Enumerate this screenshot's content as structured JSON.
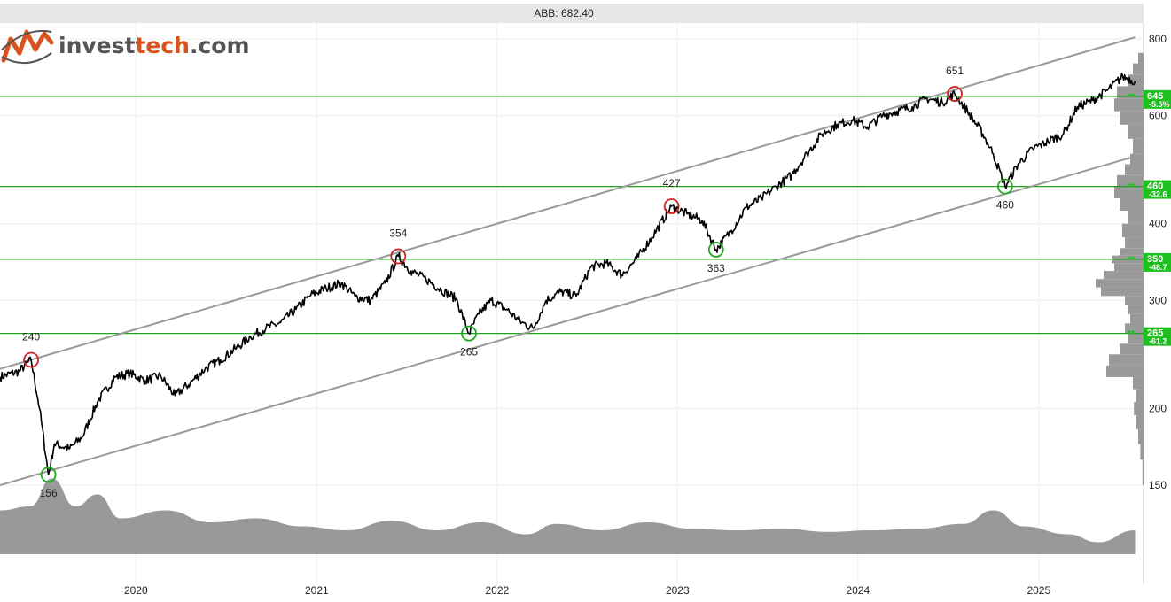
{
  "header": {
    "title": "ABB: 682.40"
  },
  "logo": {
    "part1": "invest",
    "part2": "tech",
    "part3": ".com",
    "icon": "investtech-logo-icon"
  },
  "colors": {
    "price_line": "#000000",
    "trend_channel": "#999999",
    "support_line": "#1fa31f",
    "badge": "#1fbf1f",
    "volume": "#999999",
    "high_circle": "#cc2222",
    "low_circle": "#22aa22",
    "header_bg": "#e6e6e6",
    "grid": "#eeeeee"
  },
  "chart_data": {
    "type": "line",
    "title": "ABB: 682.40",
    "last_price": 682.4,
    "scale": "log",
    "x_range": [
      "2019-04-01",
      "2025-08-01"
    ],
    "y_range": [
      150,
      800
    ],
    "y_ticks": [
      150,
      200,
      300,
      400,
      600,
      800
    ],
    "x_ticks": [
      "2020",
      "2021",
      "2022",
      "2023",
      "2024",
      "2025"
    ],
    "grid": true,
    "price_series": [
      [
        "2019-04-01",
        225
      ],
      [
        "2019-05-10",
        230
      ],
      [
        "2019-06-03",
        240
      ],
      [
        "2019-06-20",
        200
      ],
      [
        "2019-07-08",
        156
      ],
      [
        "2019-07-20",
        175
      ],
      [
        "2019-08-20",
        172
      ],
      [
        "2019-09-15",
        180
      ],
      [
        "2019-10-15",
        205
      ],
      [
        "2019-11-20",
        225
      ],
      [
        "2019-12-20",
        228
      ],
      [
        "2020-01-20",
        222
      ],
      [
        "2020-02-20",
        226
      ],
      [
        "2020-03-20",
        210
      ],
      [
        "2020-04-20",
        220
      ],
      [
        "2020-05-20",
        232
      ],
      [
        "2020-06-20",
        240
      ],
      [
        "2020-07-20",
        250
      ],
      [
        "2020-08-20",
        262
      ],
      [
        "2020-09-20",
        270
      ],
      [
        "2020-10-20",
        276
      ],
      [
        "2020-11-20",
        290
      ],
      [
        "2020-12-20",
        306
      ],
      [
        "2021-01-20",
        314
      ],
      [
        "2021-02-20",
        320
      ],
      [
        "2021-03-20",
        304
      ],
      [
        "2021-04-20",
        300
      ],
      [
        "2021-05-20",
        320
      ],
      [
        "2021-06-15",
        354
      ],
      [
        "2021-07-10",
        335
      ],
      [
        "2021-08-10",
        325
      ],
      [
        "2021-09-10",
        312
      ],
      [
        "2021-10-10",
        302
      ],
      [
        "2021-11-05",
        265
      ],
      [
        "2021-11-25",
        285
      ],
      [
        "2021-12-20",
        300
      ],
      [
        "2022-01-20",
        290
      ],
      [
        "2022-02-20",
        276
      ],
      [
        "2022-03-15",
        270
      ],
      [
        "2022-04-10",
        300
      ],
      [
        "2022-05-10",
        310
      ],
      [
        "2022-06-10",
        305
      ],
      [
        "2022-07-10",
        340
      ],
      [
        "2022-08-10",
        345
      ],
      [
        "2022-09-10",
        330
      ],
      [
        "2022-10-10",
        350
      ],
      [
        "2022-11-10",
        380
      ],
      [
        "2022-12-20",
        427
      ],
      [
        "2023-01-20",
        415
      ],
      [
        "2023-02-20",
        405
      ],
      [
        "2023-03-20",
        363
      ],
      [
        "2023-04-20",
        390
      ],
      [
        "2023-05-20",
        425
      ],
      [
        "2023-06-20",
        440
      ],
      [
        "2023-07-20",
        460
      ],
      [
        "2023-08-20",
        480
      ],
      [
        "2023-09-20",
        520
      ],
      [
        "2023-10-20",
        560
      ],
      [
        "2023-11-20",
        580
      ],
      [
        "2023-12-20",
        590
      ],
      [
        "2024-01-20",
        575
      ],
      [
        "2024-02-20",
        600
      ],
      [
        "2024-03-20",
        610
      ],
      [
        "2024-04-20",
        620
      ],
      [
        "2024-05-20",
        640
      ],
      [
        "2024-06-20",
        630
      ],
      [
        "2024-07-15",
        651
      ],
      [
        "2024-08-10",
        610
      ],
      [
        "2024-09-10",
        560
      ],
      [
        "2024-10-01",
        520
      ],
      [
        "2024-10-25",
        460
      ],
      [
        "2024-11-20",
        500
      ],
      [
        "2024-12-20",
        530
      ],
      [
        "2025-01-20",
        545
      ],
      [
        "2025-02-20",
        560
      ],
      [
        "2025-03-20",
        620
      ],
      [
        "2025-04-20",
        635
      ],
      [
        "2025-05-20",
        660
      ],
      [
        "2025-06-20",
        695
      ],
      [
        "2025-07-15",
        682.4
      ]
    ],
    "trend_channel": {
      "upper": [
        [
          "2019-04-01",
          232
        ],
        [
          "2025-07-15",
          805
        ]
      ],
      "lower": [
        [
          "2019-04-01",
          150
        ],
        [
          "2025-07-15",
          515
        ]
      ]
    },
    "support_lines": [
      {
        "value": 645,
        "label": "645",
        "pct": "-5.5%",
        "stars": "**"
      },
      {
        "value": 460,
        "label": "460",
        "pct": "-32.6",
        "stars": "**"
      },
      {
        "value": 350,
        "label": "350",
        "pct": "-48.7",
        "stars": "**"
      },
      {
        "value": 265,
        "label": "265",
        "pct": "-61.2",
        "stars": "**"
      }
    ],
    "extremes": [
      {
        "date": "2019-06-03",
        "value": 240,
        "label": "240",
        "kind": "high"
      },
      {
        "date": "2019-07-08",
        "value": 156,
        "label": "156",
        "kind": "low"
      },
      {
        "date": "2021-06-15",
        "value": 354,
        "label": "354",
        "kind": "high"
      },
      {
        "date": "2021-11-05",
        "value": 265,
        "label": "265",
        "kind": "low"
      },
      {
        "date": "2022-12-20",
        "value": 427,
        "label": "427",
        "kind": "high"
      },
      {
        "date": "2023-03-20",
        "value": 363,
        "label": "363",
        "kind": "low"
      },
      {
        "date": "2024-07-15",
        "value": 651,
        "label": "651",
        "kind": "high"
      },
      {
        "date": "2024-10-25",
        "value": 460,
        "label": "460",
        "kind": "low"
      }
    ],
    "volume_series": [
      [
        "2019-04-01",
        0.55
      ],
      [
        "2019-06-01",
        0.6
      ],
      [
        "2019-07-15",
        0.95
      ],
      [
        "2019-09-01",
        0.6
      ],
      [
        "2019-10-15",
        0.75
      ],
      [
        "2019-12-01",
        0.45
      ],
      [
        "2020-03-01",
        0.55
      ],
      [
        "2020-06-01",
        0.4
      ],
      [
        "2020-09-01",
        0.45
      ],
      [
        "2020-12-01",
        0.35
      ],
      [
        "2021-03-01",
        0.3
      ],
      [
        "2021-06-01",
        0.42
      ],
      [
        "2021-09-01",
        0.3
      ],
      [
        "2021-12-01",
        0.4
      ],
      [
        "2022-03-01",
        0.25
      ],
      [
        "2022-05-01",
        0.38
      ],
      [
        "2022-08-01",
        0.3
      ],
      [
        "2022-11-01",
        0.4
      ],
      [
        "2023-02-01",
        0.32
      ],
      [
        "2023-05-01",
        0.3
      ],
      [
        "2023-08-01",
        0.32
      ],
      [
        "2023-11-01",
        0.28
      ],
      [
        "2024-02-01",
        0.3
      ],
      [
        "2024-05-01",
        0.32
      ],
      [
        "2024-08-01",
        0.38
      ],
      [
        "2024-10-01",
        0.55
      ],
      [
        "2024-12-01",
        0.35
      ],
      [
        "2025-03-01",
        0.25
      ],
      [
        "2025-05-01",
        0.15
      ],
      [
        "2025-07-15",
        0.3
      ]
    ],
    "volume_profile": [
      [
        150,
        0.02
      ],
      [
        165,
        0.06
      ],
      [
        175,
        0.1
      ],
      [
        185,
        0.14
      ],
      [
        195,
        0.18
      ],
      [
        205,
        0.14
      ],
      [
        215,
        0.2
      ],
      [
        225,
        0.7
      ],
      [
        235,
        0.65
      ],
      [
        245,
        0.45
      ],
      [
        255,
        0.3
      ],
      [
        265,
        0.35
      ],
      [
        275,
        0.25
      ],
      [
        285,
        0.3
      ],
      [
        295,
        0.35
      ],
      [
        305,
        0.8
      ],
      [
        315,
        0.9
      ],
      [
        325,
        0.75
      ],
      [
        335,
        0.55
      ],
      [
        345,
        0.6
      ],
      [
        355,
        0.45
      ],
      [
        365,
        0.35
      ],
      [
        380,
        0.4
      ],
      [
        400,
        0.3
      ],
      [
        420,
        0.45
      ],
      [
        440,
        0.55
      ],
      [
        460,
        0.5
      ],
      [
        480,
        0.35
      ],
      [
        500,
        0.25
      ],
      [
        520,
        0.2
      ],
      [
        550,
        0.3
      ],
      [
        580,
        0.45
      ],
      [
        610,
        0.55
      ],
      [
        640,
        0.5
      ],
      [
        670,
        0.3
      ],
      [
        700,
        0.2
      ],
      [
        730,
        0.1
      ]
    ]
  }
}
